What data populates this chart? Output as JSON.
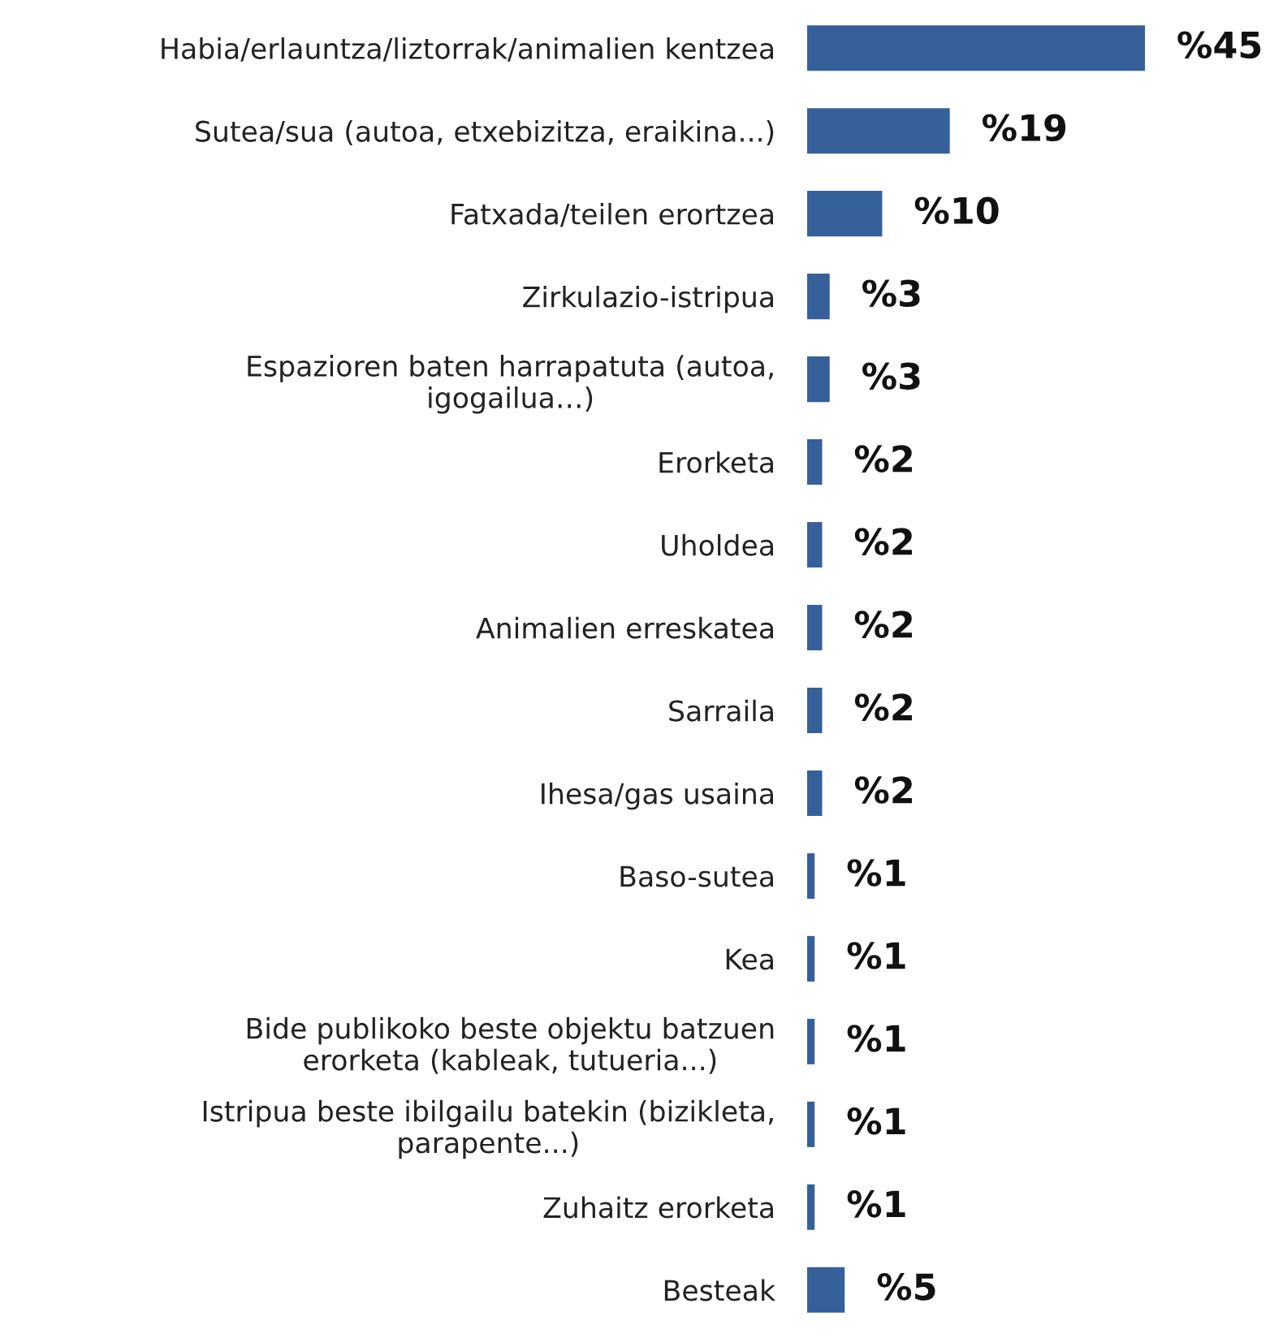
{
  "chart_data": {
    "type": "bar",
    "orientation": "horizontal",
    "categories": [
      "Habia/erlauntza/liztorrak/animalien kentzea",
      "Sutea/sua (autoa, etxebizitza, eraikina...)",
      "Fatxada/teilen erortzea",
      "Zirkulazio-istripua",
      "Espazioren baten harrapatuta (autoa,\nigogailua…)",
      "Erorketa",
      "Uholdea",
      "Animalien erreskatea",
      "Sarraila",
      "Ihesa/gas usaina",
      "Baso-sutea",
      "Kea",
      "Bide publikoko beste objektu batzuen\nerorketa (kableak, tutueria...)",
      "Istripua beste ibilgailu batekin (bizikleta,\nparapente...)",
      "Zuhaitz erorketa",
      "Besteak"
    ],
    "values": [
      45,
      19,
      10,
      3,
      3,
      2,
      2,
      2,
      2,
      2,
      1,
      1,
      1,
      1,
      1,
      5
    ],
    "value_labels": [
      "%45",
      "%19",
      "%10",
      "%3",
      "%3",
      "%2",
      "%2",
      "%2",
      "%2",
      "%2",
      "%1",
      "%1",
      "%1",
      "%1",
      "%1",
      "%5"
    ],
    "color": "#36609a",
    "grid": false,
    "legend": false
  }
}
